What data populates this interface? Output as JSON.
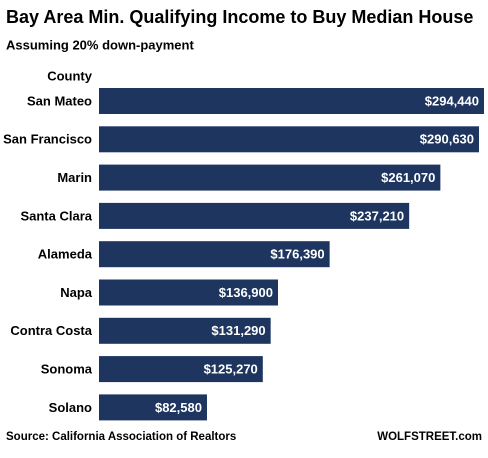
{
  "chart_data": {
    "type": "hbar",
    "title": "Bay Area Min. Qualifying Income to Buy Median House",
    "subtitle": "Assuming 20% down-payment",
    "y_label": "County",
    "categories": [
      "San Mateo",
      "San Francisco",
      "Marin",
      "Santa Clara",
      "Alameda",
      "Napa",
      "Contra Costa",
      "Sonoma",
      "Solano"
    ],
    "values": [
      294440,
      290630,
      261070,
      237210,
      176390,
      136900,
      131290,
      125270,
      82580
    ],
    "value_labels": [
      "$294,440",
      "$290,630",
      "$261,070",
      "$237,210",
      "$176,390",
      "$136,900",
      "$131,290",
      "$125,270",
      "$82,580"
    ],
    "color": "#1d355f",
    "source": "Source: California Association of Realtors",
    "credit": "WOLFSTREET.com"
  }
}
